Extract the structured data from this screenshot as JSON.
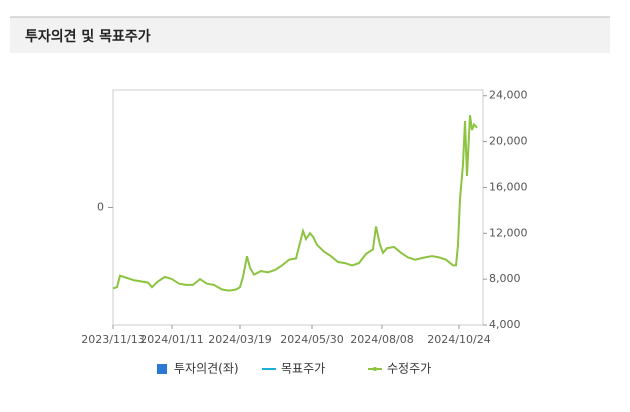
{
  "header": {
    "title": "투자의견 및 목표주가"
  },
  "chart_data": {
    "type": "line",
    "xlim": [
      "2023/11/13",
      "2024/11/17"
    ],
    "xticks": [
      "2023/11/13",
      "2024/01/11",
      "2024/03/19",
      "2024/05/30",
      "2024/08/08",
      "2024/10/24"
    ],
    "ylim": [
      -1,
      1
    ],
    "yticks": [
      0
    ],
    "y2lim": [
      4000,
      24500
    ],
    "y2ticks": [
      {
        "value": 4000,
        "label": "4,000"
      },
      {
        "value": 8000,
        "label": "8,000"
      },
      {
        "value": 12000,
        "label": "12,000"
      },
      {
        "value": 16000,
        "label": "16,000"
      },
      {
        "value": 20000,
        "label": "20,000"
      },
      {
        "value": 24000,
        "label": "24,000"
      }
    ],
    "series": [
      {
        "name": "투자의견(좌)",
        "color": "#2a7ad5",
        "x": [],
        "values": []
      },
      {
        "name": "목표주가",
        "color": "#1ab0d8",
        "axis": "y2",
        "x": [],
        "values": []
      },
      {
        "name": "수정주가",
        "color": "#8cc43f",
        "axis": "y2",
        "x": [
          "2023/11/13",
          "2023/11/17",
          "2023/11/20",
          "2023/11/27",
          "2023/12/04",
          "2023/12/11",
          "2023/12/18",
          "2023/12/22",
          "2023/12/28",
          "2024/01/04",
          "2024/01/11",
          "2024/01/18",
          "2024/01/25",
          "2024/02/01",
          "2024/02/08",
          "2024/02/15",
          "2024/02/22",
          "2024/03/01",
          "2024/03/08",
          "2024/03/15",
          "2024/03/19",
          "2024/03/22",
          "2024/03/26",
          "2024/03/29",
          "2024/04/02",
          "2024/04/09",
          "2024/04/16",
          "2024/04/23",
          "2024/04/30",
          "2024/05/07",
          "2024/05/14",
          "2024/05/21",
          "2024/05/24",
          "2024/05/28",
          "2024/05/31",
          "2024/06/04",
          "2024/06/11",
          "2024/06/18",
          "2024/06/25",
          "2024/07/02",
          "2024/07/09",
          "2024/07/16",
          "2024/07/23",
          "2024/07/30",
          "2024/08/02",
          "2024/08/06",
          "2024/08/09",
          "2024/08/13",
          "2024/08/20",
          "2024/08/27",
          "2024/09/03",
          "2024/09/10",
          "2024/09/20",
          "2024/09/27",
          "2024/10/04",
          "2024/10/11",
          "2024/10/18",
          "2024/10/21",
          "2024/10/23",
          "2024/10/25",
          "2024/10/28",
          "2024/10/30",
          "2024/11/01",
          "2024/11/04",
          "2024/11/06",
          "2024/11/08",
          "2024/11/11"
        ],
        "values": [
          7200,
          7300,
          8300,
          8100,
          7900,
          7800,
          7700,
          7300,
          7800,
          8200,
          8000,
          7600,
          7500,
          7500,
          8000,
          7600,
          7500,
          7100,
          7000,
          7100,
          7300,
          8200,
          10000,
          9000,
          8400,
          8700,
          8600,
          8800,
          9200,
          9700,
          9800,
          12200,
          11500,
          12000,
          11700,
          11000,
          10400,
          10000,
          9500,
          9400,
          9200,
          9400,
          10200,
          10600,
          12600,
          11000,
          10300,
          10700,
          10800,
          10300,
          9900,
          9700,
          9900,
          10000,
          9900,
          9700,
          9200,
          9200,
          11000,
          15000,
          18000,
          21800,
          17000,
          22300,
          21000,
          21500,
          21200
        ]
      }
    ]
  }
}
